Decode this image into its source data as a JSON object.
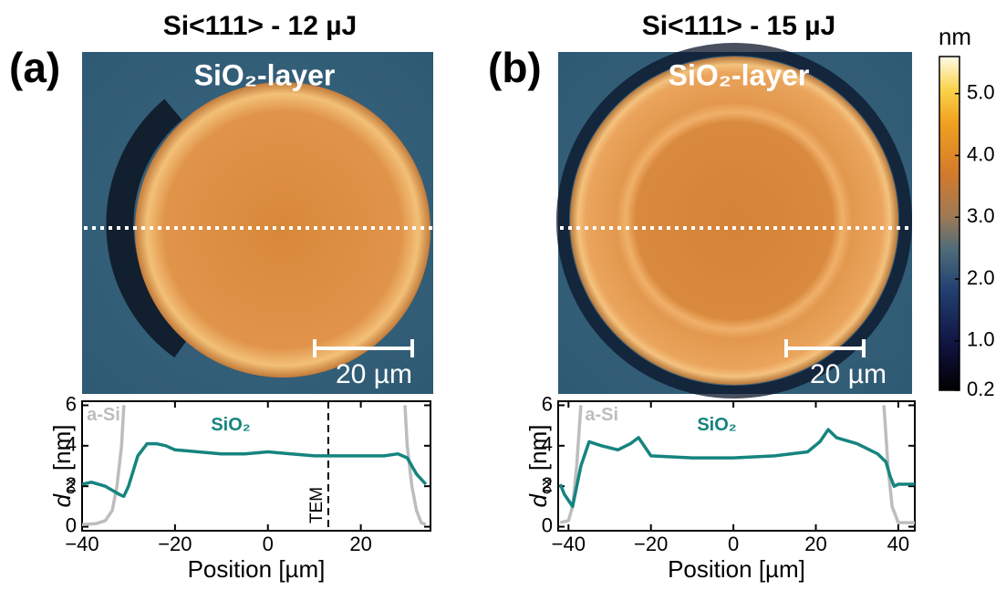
{
  "chart_data": [
    {
      "type": "image",
      "title": "Si<111> - 12 µJ",
      "panel": "(a)",
      "annotation": "SiO₂-layer",
      "scale_bar": "20 µm"
    },
    {
      "type": "line",
      "xlabel": "Position [µm]",
      "ylabel": {
        "symbol": "d",
        "sub": "ox",
        "unit": "[nm]"
      },
      "xlim": [
        -40,
        35
      ],
      "ylim": [
        -0.2,
        6.2
      ],
      "xticks": [
        {
          "value": -40,
          "label": "−40"
        },
        {
          "value": -20,
          "label": "−20"
        },
        0,
        20
      ],
      "yticks": [
        0,
        2,
        4,
        6
      ],
      "marker_line": {
        "label": "TEM",
        "x": 13
      },
      "series": [
        {
          "name": "a-Si",
          "color": "#bdbdbd",
          "x": [
            -40,
            -37,
            -35,
            -33.5,
            -32.5,
            -31.5,
            -31,
            null,
            29.5,
            30,
            31,
            32,
            33,
            34
          ],
          "values": [
            0.1,
            0.15,
            0.3,
            0.8,
            2.0,
            4.0,
            6.0,
            null,
            6.0,
            4.0,
            2.0,
            0.8,
            0.2,
            0.1
          ]
        },
        {
          "name": "SiO₂",
          "color": "#16847f",
          "x": [
            -40,
            -38,
            -35,
            -32,
            -31,
            -30,
            -28,
            -26,
            -24,
            -22,
            -20,
            -15,
            -10,
            -5,
            0,
            5,
            10,
            15,
            20,
            25,
            28,
            30,
            32,
            34
          ],
          "values": [
            2.1,
            2.2,
            2.0,
            1.6,
            1.5,
            2.0,
            3.5,
            4.1,
            4.1,
            4.0,
            3.8,
            3.7,
            3.6,
            3.6,
            3.7,
            3.6,
            3.5,
            3.5,
            3.5,
            3.5,
            3.6,
            3.4,
            2.6,
            2.1
          ]
        }
      ]
    },
    {
      "type": "image",
      "title": "Si<111> - 15 µJ",
      "panel": "(b)",
      "annotation": "SiO₂-layer",
      "scale_bar": "20 µm"
    },
    {
      "type": "line",
      "xlabel": "Position [µm]",
      "ylabel": {
        "symbol": "d",
        "sub": "ox",
        "unit": "[nm]"
      },
      "xlim": [
        -42.5,
        44
      ],
      "ylim": [
        -0.2,
        6.2
      ],
      "xticks": [
        {
          "value": -40,
          "label": "−40"
        },
        {
          "value": -20,
          "label": "−20"
        },
        0,
        20,
        40
      ],
      "yticks": [
        0,
        2,
        4,
        6
      ],
      "series": [
        {
          "name": "a-Si",
          "color": "#bdbdbd",
          "x": [
            -42,
            -40,
            -39,
            -38,
            -37.5,
            -37,
            null,
            36.5,
            37,
            37.5,
            38.5,
            40,
            42,
            44
          ],
          "values": [
            0.2,
            0.3,
            1.0,
            3.0,
            4.5,
            6.0,
            null,
            6.0,
            4.5,
            3.0,
            1.0,
            0.2,
            0.2,
            0.2
          ]
        },
        {
          "name": "SiO₂",
          "color": "#16847f",
          "x": [
            -42,
            -41,
            -39,
            -37,
            -35,
            -32,
            -28,
            -25,
            -23,
            -22,
            -20,
            -10,
            0,
            10,
            18,
            21,
            23,
            25,
            30,
            35,
            37,
            38,
            39,
            40,
            44
          ],
          "values": [
            2.1,
            1.6,
            1.0,
            3.0,
            4.2,
            4.0,
            3.8,
            4.1,
            4.4,
            4.1,
            3.5,
            3.4,
            3.4,
            3.5,
            3.7,
            4.2,
            4.8,
            4.4,
            4.1,
            3.6,
            3.2,
            2.5,
            2.0,
            2.1,
            2.1
          ]
        }
      ]
    },
    {
      "type": "colorbar",
      "label": "nm",
      "ylim": [
        0.2,
        5.6
      ],
      "yticks": [
        0.2,
        {
          "value": 1.0,
          "label": "1.0"
        },
        {
          "value": 2.0,
          "label": "2.0"
        },
        {
          "value": 3.0,
          "label": "3.0"
        },
        {
          "value": 4.0,
          "label": "4.0"
        },
        {
          "value": 5.0,
          "label": "5.0"
        }
      ]
    }
  ]
}
